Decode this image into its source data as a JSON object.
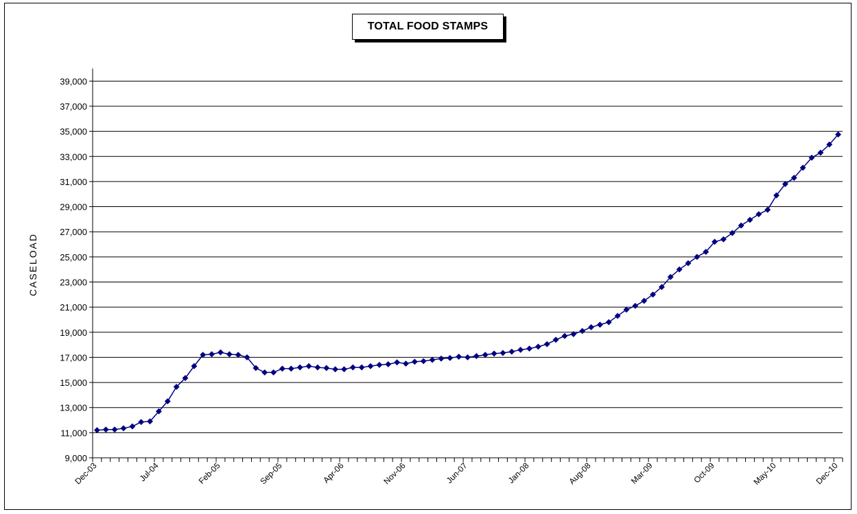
{
  "chart_data": {
    "type": "line",
    "title": "TOTAL FOOD STAMPS",
    "xlabel": "",
    "ylabel": "CASELOAD",
    "ylim": [
      9000,
      40000
    ],
    "yticks": [
      9000,
      11000,
      13000,
      15000,
      17000,
      19000,
      21000,
      23000,
      25000,
      27000,
      29000,
      31000,
      33000,
      35000,
      37000,
      39000
    ],
    "ytick_labels": [
      "9,000",
      "11,000",
      "13,000",
      "15,000",
      "17,000",
      "19,000",
      "21,000",
      "23,000",
      "25,000",
      "27,000",
      "29,000",
      "31,000",
      "33,000",
      "35,000",
      "37,000",
      "39,000"
    ],
    "x_tick_labels": [
      {
        "index": 0,
        "label": "Dec-03"
      },
      {
        "index": 7,
        "label": "Jul-04"
      },
      {
        "index": 14,
        "label": "Feb-05"
      },
      {
        "index": 21,
        "label": "Sep-05"
      },
      {
        "index": 28,
        "label": "Apr-06"
      },
      {
        "index": 35,
        "label": "Nov-06"
      },
      {
        "index": 42,
        "label": "Jun-07"
      },
      {
        "index": 49,
        "label": "Jan-08"
      },
      {
        "index": 56,
        "label": "Aug-08"
      },
      {
        "index": 63,
        "label": "Mar-09"
      },
      {
        "index": 70,
        "label": "Oct-09"
      },
      {
        "index": 77,
        "label": "May-10"
      },
      {
        "index": 84,
        "label": "Dec-10"
      }
    ],
    "grid": true,
    "color": "#000080",
    "series": [
      {
        "values": [
          11200,
          11250,
          11250,
          11350,
          11500,
          11850,
          11900,
          12700,
          13500,
          14650,
          15350,
          16300,
          17200,
          17250,
          17400,
          17250,
          17200,
          17000,
          16150,
          15800,
          15800,
          16100,
          16100,
          16200,
          16300,
          16200,
          16150,
          16050,
          16050,
          16200,
          16200,
          16300,
          16400,
          16450,
          16600,
          16500,
          16650,
          16700,
          16800,
          16900,
          16950,
          17050,
          17000,
          17100,
          17200,
          17300,
          17350,
          17450,
          17600,
          17700,
          17850,
          18050,
          18400,
          18700,
          18850,
          19100,
          19400,
          19600,
          19800,
          20300,
          20800,
          21100,
          21500,
          22000,
          22600,
          23400,
          24000,
          24500,
          25000,
          25400,
          26200,
          26400,
          26900,
          27500,
          27950,
          28400,
          28750,
          29900,
          30800,
          31300,
          32100,
          32900,
          33300,
          33950,
          34750
        ]
      }
    ]
  }
}
